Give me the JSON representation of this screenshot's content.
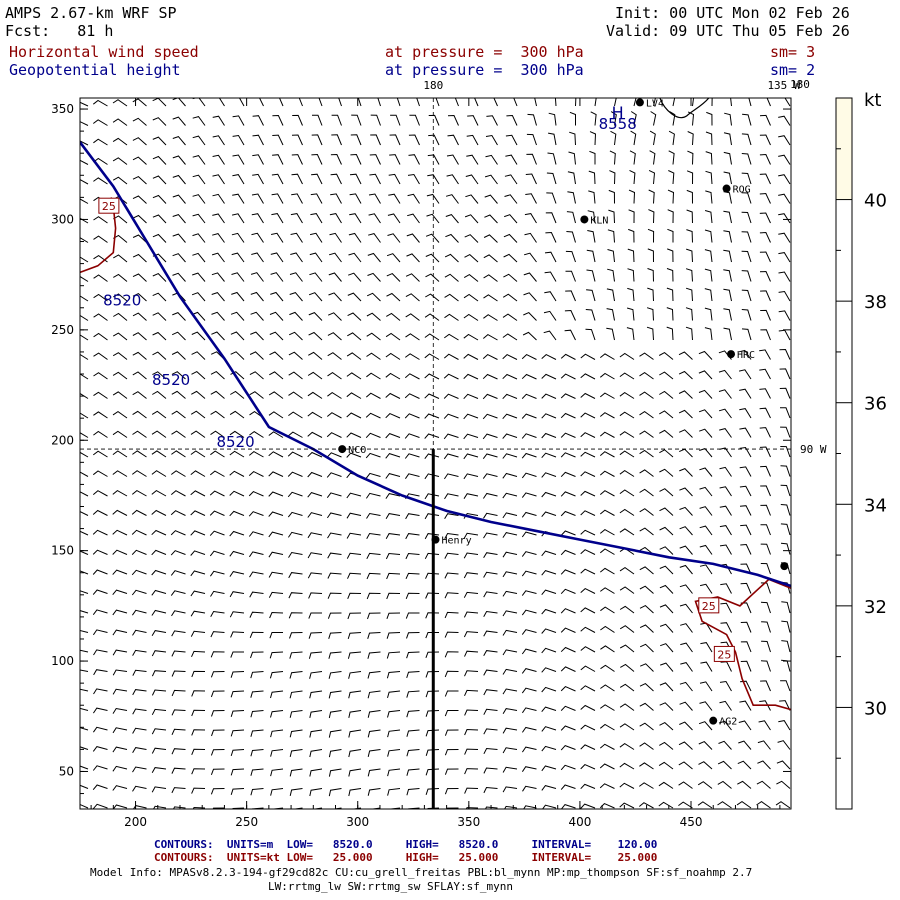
{
  "header": {
    "title": "AMPS 2.67-km WRF SP",
    "forecast": "Fcst:   81 h",
    "init": "Init: 00 UTC Mon 02 Feb 26",
    "valid": "Valid: 09 UTC Thu 05 Feb 26"
  },
  "fields": [
    {
      "name": "Horizontal wind speed",
      "level": "at pressure =  300 hPa",
      "smooth": "sm= 3"
    },
    {
      "name": "Geopotential height",
      "level": "at pressure =  300 hPa",
      "smooth": "sm= 2"
    }
  ],
  "map": {
    "meridians": [
      "180",
      "135 W",
      "90 W"
    ],
    "high_label": "H",
    "high_value": "8558",
    "colors": {
      "wind": "#8b0000",
      "height": "#00008b",
      "barb": "#000000",
      "colorbar": "#fffbe6"
    }
  },
  "chart_data": {
    "type": "contour-map",
    "xlim": [
      175,
      495
    ],
    "ylim": [
      33,
      355
    ],
    "x_ticks": [
      200,
      250,
      300,
      350,
      400,
      450
    ],
    "y_ticks": [
      50,
      100,
      150,
      200,
      250,
      300,
      350
    ],
    "crosshair": {
      "x": 334,
      "y": 196
    },
    "height_contours": [
      {
        "value": 8520,
        "label": "8520",
        "points": [
          [
            175,
            335
          ],
          [
            190,
            315
          ],
          [
            205,
            290
          ],
          [
            220,
            265
          ],
          [
            240,
            237
          ],
          [
            260,
            206
          ],
          [
            280,
            196
          ],
          [
            300,
            184
          ],
          [
            320,
            175
          ],
          [
            340,
            168
          ],
          [
            360,
            163
          ],
          [
            380,
            159
          ],
          [
            400,
            155
          ],
          [
            420,
            151
          ],
          [
            440,
            147
          ],
          [
            460,
            144
          ],
          [
            480,
            139
          ],
          [
            495,
            134
          ]
        ]
      }
    ],
    "height_labels": [
      {
        "text": "8520",
        "x": 194,
        "y": 261
      },
      {
        "text": "8520",
        "x": 216,
        "y": 225
      },
      {
        "text": "8520",
        "x": 245,
        "y": 197
      },
      {
        "text": "8558",
        "x": 417,
        "y": 341
      }
    ],
    "wind_contours": [
      {
        "value": 25,
        "points": [
          [
            175,
            276
          ],
          [
            183,
            279
          ],
          [
            190,
            285
          ],
          [
            191,
            296
          ],
          [
            190,
            306
          ],
          [
            189,
            310
          ]
        ]
      },
      {
        "value": 25,
        "points": [
          [
            495,
            133
          ],
          [
            485,
            137
          ],
          [
            472,
            125
          ],
          [
            462,
            129
          ],
          [
            452,
            127
          ],
          [
            455,
            118
          ],
          [
            466,
            112
          ],
          [
            470,
            104
          ],
          [
            473,
            92
          ],
          [
            478,
            80
          ],
          [
            488,
            80
          ],
          [
            495,
            78
          ]
        ]
      }
    ],
    "wind_labels": [
      {
        "text": "25",
        "x": 188,
        "y": 306
      },
      {
        "text": "25",
        "x": 458,
        "y": 125
      },
      {
        "text": "25",
        "x": 465,
        "y": 103
      }
    ],
    "stations": [
      {
        "name": "LV4",
        "x": 427,
        "y": 353
      },
      {
        "name": "ROG",
        "x": 466,
        "y": 314
      },
      {
        "name": "KLN",
        "x": 402,
        "y": 300
      },
      {
        "name": "HRC",
        "x": 468,
        "y": 239
      },
      {
        "name": "NCO",
        "x": 293,
        "y": 196
      },
      {
        "name": "Henry",
        "x": 335,
        "y": 155
      },
      {
        "name": "AG2",
        "x": 460,
        "y": 73
      },
      {
        "name": "",
        "x": 492,
        "y": 143
      }
    ],
    "colorbar": {
      "unit": "kt",
      "ticks": [
        30,
        32,
        34,
        36,
        38,
        40
      ],
      "range": [
        28,
        42
      ],
      "filled_above": 40
    }
  },
  "footer": {
    "rows": [
      {
        "label": "CONTOURS:",
        "units": "UNITS=m",
        "low": "LOW=   8520.0",
        "high": "HIGH=   8520.0",
        "interval": "INTERVAL=    120.00"
      },
      {
        "label": "CONTOURS:",
        "units": "UNITS=kt",
        "low": "LOW=   25.000",
        "high": "HIGH=   25.000",
        "interval": "INTERVAL=    25.000"
      }
    ],
    "model_info": "Model Info: MPASv8.2.3-194-gf29cd82c CU:cu_grell_freitas PBL:bl_mynn MP:mp_thompson SF:sf_noahmp 2.7",
    "model_info2": "LW:rrtmg_lw SW:rrtmg_sw SFLAY:sf_mynn"
  }
}
